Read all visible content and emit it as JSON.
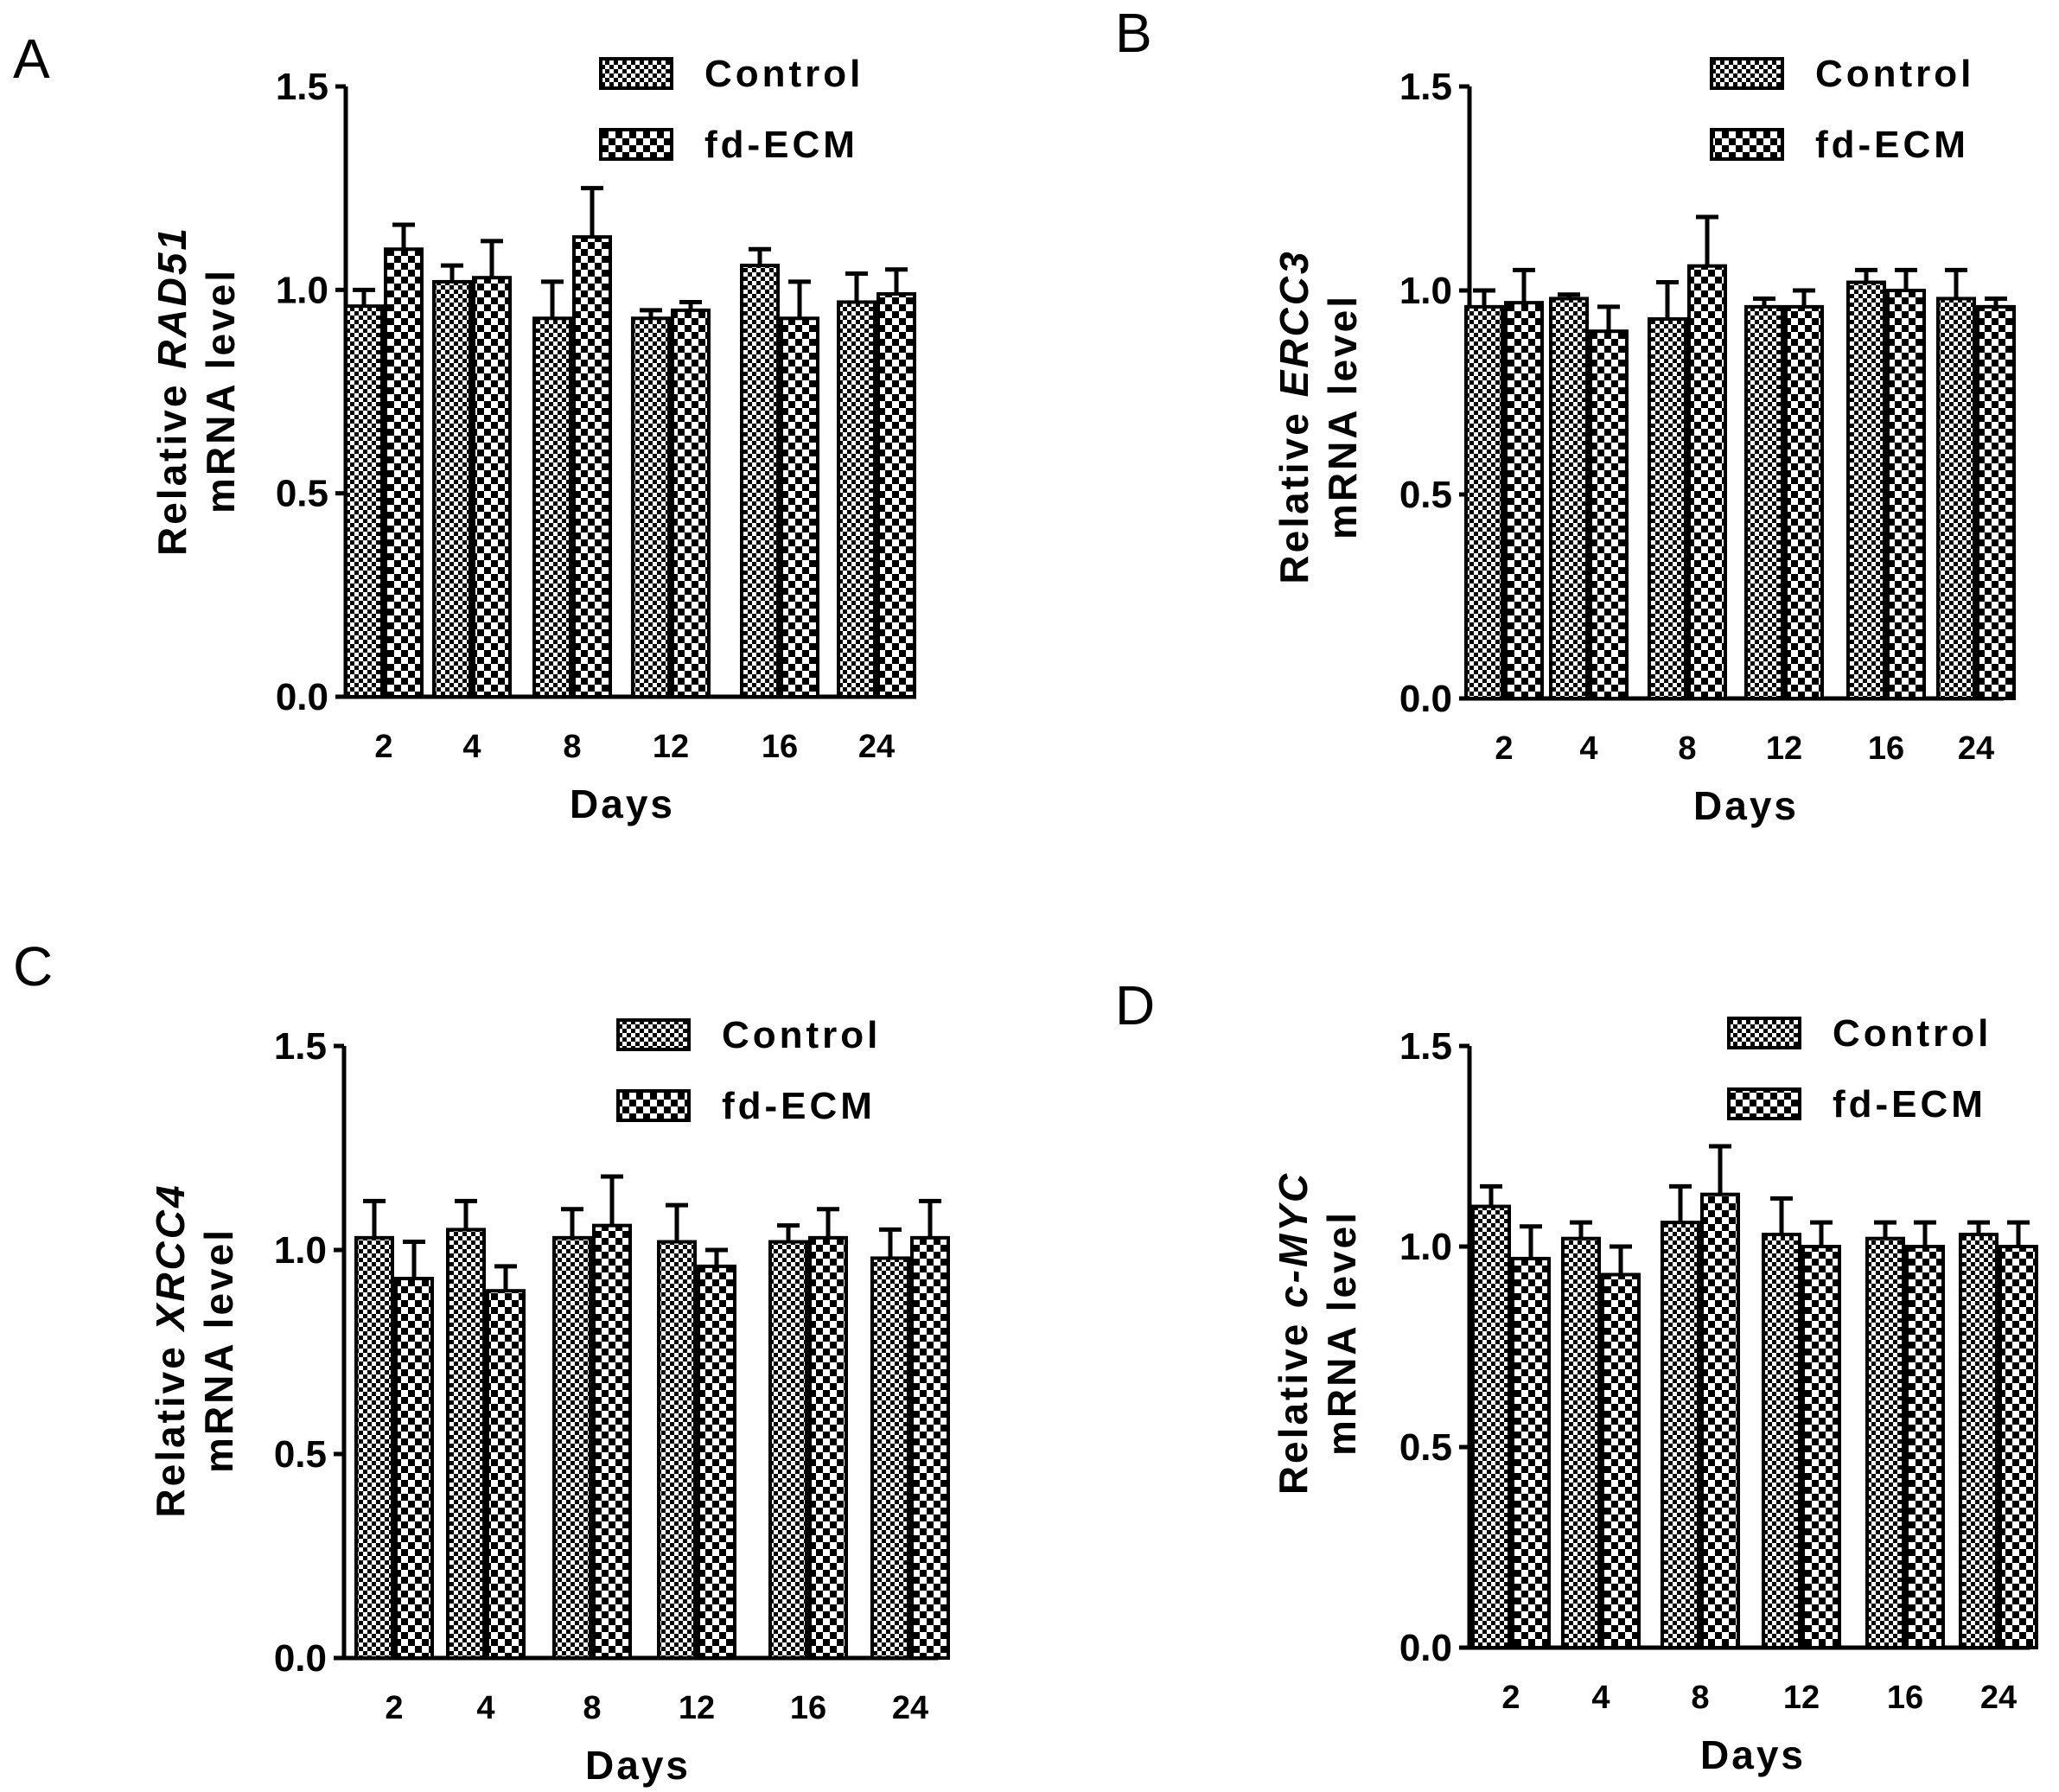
{
  "colors": {
    "ink": "#000000",
    "background": "#ffffff"
  },
  "chart_data": [
    {
      "panel": "A",
      "type": "bar",
      "ylabel_prefix": "Relative ",
      "gene": "RAD51",
      "ylabel_line2": "mRNA level",
      "xlabel": "Days",
      "categories": [
        "2",
        "4",
        "8",
        "12",
        "16",
        "24"
      ],
      "yticks": [
        "0.0",
        "0.5",
        "1.0",
        "1.5"
      ],
      "ylim": [
        0,
        1.5
      ],
      "legend": [
        "Control",
        "fd-ECM"
      ],
      "series": [
        {
          "name": "Control",
          "pattern": "fine-checker",
          "values": [
            0.96,
            1.02,
            0.93,
            0.93,
            1.06,
            0.97
          ],
          "errors": [
            0.04,
            0.04,
            0.09,
            0.02,
            0.04,
            0.07
          ]
        },
        {
          "name": "fd-ECM",
          "pattern": "coarse-checker",
          "values": [
            1.1,
            1.03,
            1.13,
            0.95,
            0.93,
            0.99
          ],
          "errors": [
            0.06,
            0.09,
            0.12,
            0.02,
            0.09,
            0.06
          ]
        }
      ]
    },
    {
      "panel": "B",
      "type": "bar",
      "ylabel_prefix": "Relative ",
      "gene": "ERCC3",
      "ylabel_line2": "mRNA level",
      "xlabel": "Days",
      "categories": [
        "2",
        "4",
        "8",
        "12",
        "16",
        "24"
      ],
      "yticks": [
        "0.0",
        "0.5",
        "1.0",
        "1.5"
      ],
      "ylim": [
        0,
        1.5
      ],
      "legend": [
        "Control",
        "fd-ECM"
      ],
      "series": [
        {
          "name": "Control",
          "pattern": "fine-checker",
          "values": [
            0.96,
            0.98,
            0.93,
            0.96,
            1.02,
            0.98
          ],
          "errors": [
            0.04,
            0.01,
            0.09,
            0.02,
            0.03,
            0.07
          ]
        },
        {
          "name": "fd-ECM",
          "pattern": "coarse-checker",
          "values": [
            0.97,
            0.9,
            1.06,
            0.96,
            1.0,
            0.96
          ],
          "errors": [
            0.08,
            0.06,
            0.12,
            0.04,
            0.05,
            0.02
          ]
        }
      ]
    },
    {
      "panel": "C",
      "type": "bar",
      "ylabel_prefix": "Relative ",
      "gene": "XRCC4",
      "ylabel_line2": "mRNA level",
      "xlabel": "Days",
      "categories": [
        "2",
        "4",
        "8",
        "12",
        "16",
        "24"
      ],
      "yticks": [
        "0.0",
        "0.5",
        "1.0",
        "1.5"
      ],
      "ylim": [
        0,
        1.5
      ],
      "legend": [
        "Control",
        "fd-ECM"
      ],
      "series": [
        {
          "name": "Control",
          "pattern": "fine-checker",
          "values": [
            1.03,
            1.05,
            1.03,
            1.02,
            1.02,
            0.98
          ],
          "errors": [
            0.09,
            0.07,
            0.07,
            0.09,
            0.04,
            0.07
          ]
        },
        {
          "name": "fd-ECM",
          "pattern": "coarse-checker",
          "values": [
            0.93,
            0.9,
            1.06,
            0.96,
            1.03,
            1.03
          ],
          "errors": [
            0.09,
            0.06,
            0.12,
            0.04,
            0.07,
            0.09
          ]
        }
      ]
    },
    {
      "panel": "D",
      "type": "bar",
      "ylabel_prefix": "Relative ",
      "gene": "c-MYC",
      "ylabel_line2": "mRNA level",
      "xlabel": "Days",
      "categories": [
        "2",
        "4",
        "8",
        "12",
        "16",
        "24"
      ],
      "yticks": [
        "0.0",
        "0.5",
        "1.0",
        "1.5"
      ],
      "ylim": [
        0,
        1.5
      ],
      "legend": [
        "Control",
        "fd-ECM"
      ],
      "series": [
        {
          "name": "Control",
          "pattern": "fine-checker",
          "values": [
            1.1,
            1.02,
            1.06,
            1.03,
            1.02,
            1.03
          ],
          "errors": [
            0.05,
            0.04,
            0.09,
            0.09,
            0.04,
            0.03
          ]
        },
        {
          "name": "fd-ECM",
          "pattern": "coarse-checker",
          "values": [
            0.97,
            0.93,
            1.13,
            1.0,
            1.0,
            1.0
          ],
          "errors": [
            0.08,
            0.07,
            0.12,
            0.06,
            0.06,
            0.06
          ]
        }
      ]
    }
  ]
}
